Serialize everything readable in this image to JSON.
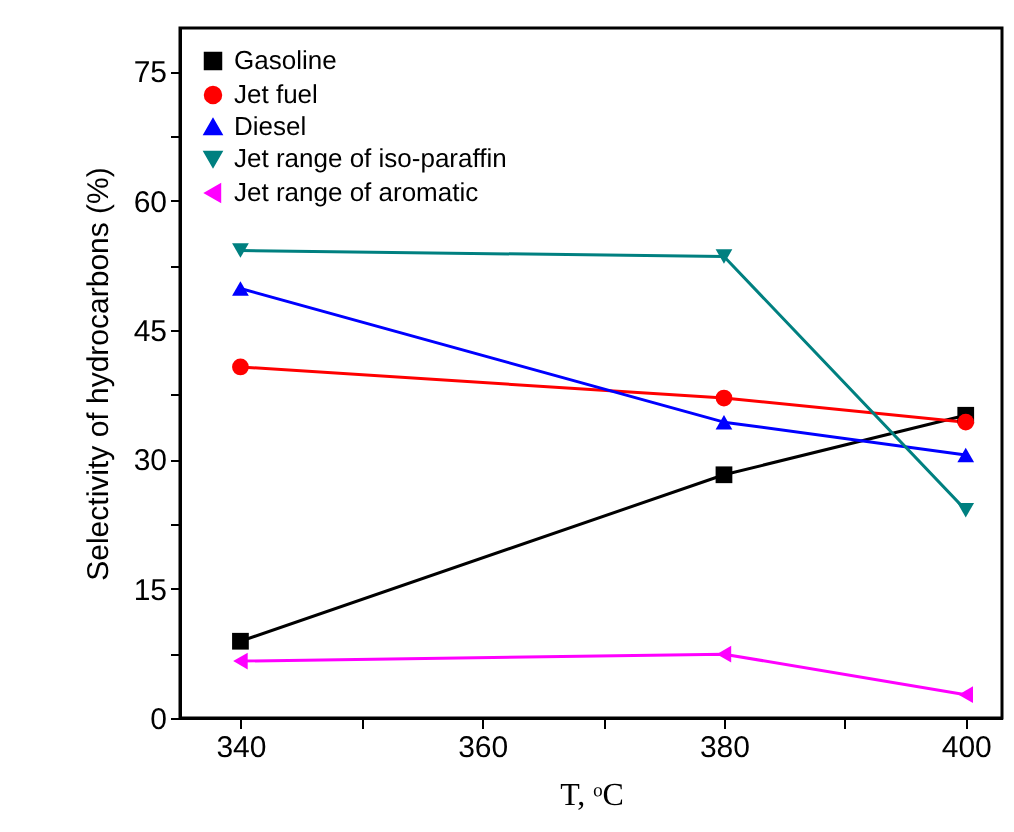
{
  "chart_data": {
    "type": "line",
    "xlabel": "T, ᵒC",
    "ylabel": "Selectivity of hydrocarbons (%)",
    "x": [
      340,
      380,
      400
    ],
    "series": [
      {
        "name": "Gasoline",
        "color": "#000000",
        "marker": "square",
        "values": [
          8.9,
          28.2,
          35.1
        ]
      },
      {
        "name": "Jet fuel",
        "color": "#ff0000",
        "marker": "circle",
        "values": [
          40.7,
          37.1,
          34.3
        ]
      },
      {
        "name": "Diesel",
        "color": "#0000ff",
        "marker": "triangle",
        "values": [
          49.8,
          34.3,
          30.5
        ]
      },
      {
        "name": "Jet range of  iso-paraffin",
        "color": "#008080",
        "marker": "triangle-down",
        "values": [
          54.2,
          53.5,
          24.1
        ]
      },
      {
        "name": "Jet range of aromatic",
        "color": "#ff00ff",
        "marker": "triangle-left",
        "values": [
          6.6,
          7.4,
          2.7
        ]
      }
    ],
    "xlim": [
      335,
      403
    ],
    "ylim": [
      0,
      80
    ],
    "xticks": [
      340,
      {
        "value": 350,
        "label": null
      },
      360,
      {
        "value": 370,
        "label": null
      },
      380,
      {
        "value": 390,
        "label": null
      },
      400
    ],
    "yticks": [
      0,
      {
        "value": 7.5,
        "label": null
      },
      15,
      {
        "value": 22.5,
        "label": null
      },
      30,
      {
        "value": 37.5,
        "label": null
      },
      45,
      {
        "value": 52.5,
        "label": null
      },
      60,
      {
        "value": 67.5,
        "label": null
      },
      75
    ],
    "grid": false,
    "legend": "top left",
    "line_style": "solid"
  }
}
